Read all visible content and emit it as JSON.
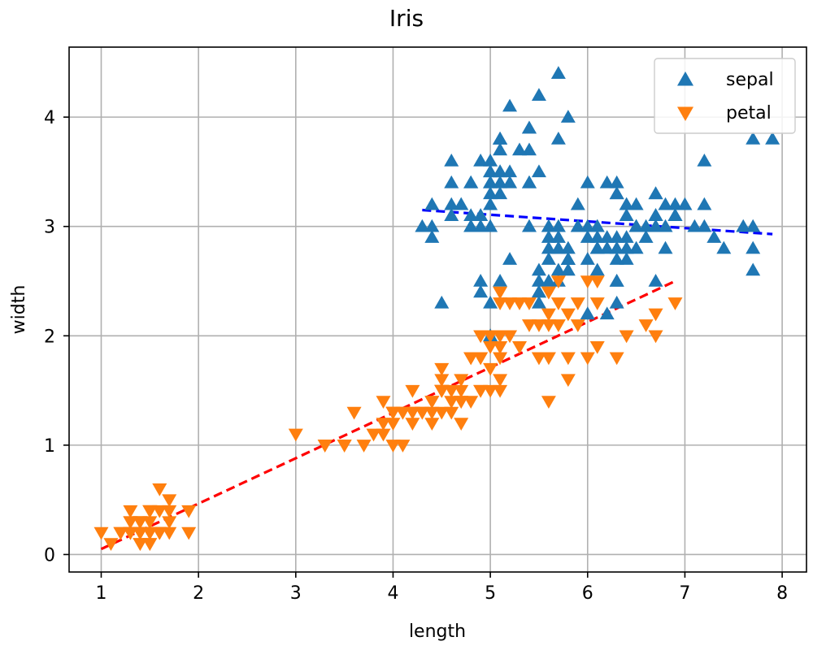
{
  "chart_data": {
    "type": "scatter",
    "title": "Iris",
    "xlabel": "length",
    "ylabel": "width",
    "xlim": [
      0.67,
      8.25
    ],
    "ylim": [
      -0.16,
      4.64
    ],
    "xticks": [
      1,
      2,
      3,
      4,
      5,
      6,
      7,
      8
    ],
    "yticks": [
      0,
      1,
      2,
      3,
      4
    ],
    "grid": true,
    "legend_position": "top-right",
    "series": [
      {
        "name": "sepal",
        "marker": "triangle-up",
        "color": "#1f77b4",
        "points": [
          [
            5.1,
            3.5
          ],
          [
            4.9,
            3.0
          ],
          [
            4.7,
            3.2
          ],
          [
            4.6,
            3.1
          ],
          [
            5.0,
            3.6
          ],
          [
            5.4,
            3.9
          ],
          [
            4.6,
            3.4
          ],
          [
            5.0,
            3.4
          ],
          [
            4.4,
            2.9
          ],
          [
            4.9,
            3.1
          ],
          [
            5.4,
            3.7
          ],
          [
            4.8,
            3.4
          ],
          [
            4.8,
            3.0
          ],
          [
            4.3,
            3.0
          ],
          [
            5.8,
            4.0
          ],
          [
            5.7,
            4.4
          ],
          [
            5.4,
            3.9
          ],
          [
            5.1,
            3.5
          ],
          [
            5.7,
            3.8
          ],
          [
            5.1,
            3.8
          ],
          [
            5.4,
            3.4
          ],
          [
            5.1,
            3.7
          ],
          [
            4.6,
            3.6
          ],
          [
            5.1,
            3.3
          ],
          [
            4.8,
            3.4
          ],
          [
            5.0,
            3.0
          ],
          [
            5.0,
            3.4
          ],
          [
            5.2,
            3.5
          ],
          [
            5.2,
            3.4
          ],
          [
            4.7,
            3.2
          ],
          [
            4.8,
            3.1
          ],
          [
            5.4,
            3.4
          ],
          [
            5.2,
            4.1
          ],
          [
            5.5,
            4.2
          ],
          [
            4.9,
            3.1
          ],
          [
            5.0,
            3.2
          ],
          [
            5.5,
            3.5
          ],
          [
            4.9,
            3.6
          ],
          [
            4.4,
            3.0
          ],
          [
            5.1,
            3.4
          ],
          [
            5.0,
            3.5
          ],
          [
            4.5,
            2.3
          ],
          [
            4.4,
            3.2
          ],
          [
            5.0,
            3.5
          ],
          [
            5.1,
            3.8
          ],
          [
            4.8,
            3.0
          ],
          [
            5.1,
            3.8
          ],
          [
            4.6,
            3.2
          ],
          [
            5.3,
            3.7
          ],
          [
            5.0,
            3.3
          ],
          [
            7.0,
            3.2
          ],
          [
            6.4,
            3.2
          ],
          [
            6.9,
            3.1
          ],
          [
            5.5,
            2.3
          ],
          [
            6.5,
            2.8
          ],
          [
            5.7,
            2.8
          ],
          [
            6.3,
            3.3
          ],
          [
            4.9,
            2.4
          ],
          [
            6.6,
            2.9
          ],
          [
            5.2,
            2.7
          ],
          [
            5.0,
            2.0
          ],
          [
            5.9,
            3.0
          ],
          [
            6.0,
            2.2
          ],
          [
            6.1,
            2.9
          ],
          [
            5.6,
            2.9
          ],
          [
            6.7,
            3.1
          ],
          [
            5.6,
            3.0
          ],
          [
            5.8,
            2.7
          ],
          [
            6.2,
            2.2
          ],
          [
            5.6,
            2.5
          ],
          [
            5.9,
            3.2
          ],
          [
            6.1,
            2.8
          ],
          [
            6.3,
            2.5
          ],
          [
            6.1,
            2.8
          ],
          [
            6.4,
            2.9
          ],
          [
            6.6,
            3.0
          ],
          [
            6.8,
            2.8
          ],
          [
            6.7,
            3.0
          ],
          [
            6.0,
            2.9
          ],
          [
            5.7,
            2.6
          ],
          [
            5.5,
            2.4
          ],
          [
            5.5,
            2.4
          ],
          [
            5.8,
            2.7
          ],
          [
            6.0,
            2.7
          ],
          [
            5.4,
            3.0
          ],
          [
            6.0,
            3.4
          ],
          [
            6.7,
            3.1
          ],
          [
            6.3,
            2.3
          ],
          [
            5.6,
            3.0
          ],
          [
            5.5,
            2.5
          ],
          [
            5.5,
            2.6
          ],
          [
            6.1,
            3.0
          ],
          [
            5.8,
            2.6
          ],
          [
            5.0,
            2.3
          ],
          [
            5.6,
            2.7
          ],
          [
            5.7,
            3.0
          ],
          [
            5.7,
            2.9
          ],
          [
            6.2,
            2.9
          ],
          [
            5.1,
            2.5
          ],
          [
            5.7,
            2.8
          ],
          [
            6.3,
            3.3
          ],
          [
            5.8,
            2.7
          ],
          [
            7.1,
            3.0
          ],
          [
            6.3,
            2.9
          ],
          [
            6.5,
            3.0
          ],
          [
            7.6,
            3.0
          ],
          [
            4.9,
            2.5
          ],
          [
            7.3,
            2.9
          ],
          [
            6.7,
            2.5
          ],
          [
            7.2,
            3.6
          ],
          [
            6.5,
            3.2
          ],
          [
            6.4,
            2.7
          ],
          [
            6.8,
            3.0
          ],
          [
            5.7,
            2.5
          ],
          [
            5.8,
            2.8
          ],
          [
            6.4,
            3.2
          ],
          [
            6.5,
            3.0
          ],
          [
            7.7,
            3.8
          ],
          [
            7.7,
            2.6
          ],
          [
            6.0,
            2.2
          ],
          [
            6.9,
            3.2
          ],
          [
            5.6,
            2.8
          ],
          [
            7.7,
            2.8
          ],
          [
            6.3,
            2.7
          ],
          [
            6.7,
            3.3
          ],
          [
            7.2,
            3.2
          ],
          [
            6.2,
            2.8
          ],
          [
            6.1,
            3.0
          ],
          [
            6.4,
            2.8
          ],
          [
            7.2,
            3.0
          ],
          [
            7.4,
            2.8
          ],
          [
            7.9,
            3.8
          ],
          [
            6.4,
            2.8
          ],
          [
            6.3,
            2.8
          ],
          [
            6.1,
            2.6
          ],
          [
            7.7,
            3.0
          ],
          [
            6.3,
            3.4
          ],
          [
            6.4,
            3.1
          ],
          [
            6.0,
            3.0
          ],
          [
            6.9,
            3.1
          ],
          [
            6.7,
            3.1
          ],
          [
            6.9,
            3.1
          ],
          [
            5.8,
            2.7
          ],
          [
            6.8,
            3.2
          ],
          [
            6.7,
            3.3
          ],
          [
            6.7,
            3.0
          ],
          [
            6.3,
            2.5
          ],
          [
            6.5,
            3.0
          ],
          [
            6.2,
            3.4
          ],
          [
            5.9,
            3.0
          ]
        ]
      },
      {
        "name": "petal",
        "marker": "triangle-down",
        "color": "#ff7f0e",
        "points": [
          [
            1.4,
            0.2
          ],
          [
            1.4,
            0.2
          ],
          [
            1.3,
            0.2
          ],
          [
            1.5,
            0.2
          ],
          [
            1.4,
            0.2
          ],
          [
            1.7,
            0.4
          ],
          [
            1.4,
            0.3
          ],
          [
            1.5,
            0.2
          ],
          [
            1.4,
            0.2
          ],
          [
            1.5,
            0.1
          ],
          [
            1.5,
            0.2
          ],
          [
            1.6,
            0.2
          ],
          [
            1.4,
            0.1
          ],
          [
            1.1,
            0.1
          ],
          [
            1.2,
            0.2
          ],
          [
            1.5,
            0.4
          ],
          [
            1.3,
            0.4
          ],
          [
            1.4,
            0.3
          ],
          [
            1.7,
            0.3
          ],
          [
            1.5,
            0.3
          ],
          [
            1.7,
            0.2
          ],
          [
            1.5,
            0.4
          ],
          [
            1.0,
            0.2
          ],
          [
            1.7,
            0.5
          ],
          [
            1.9,
            0.2
          ],
          [
            1.6,
            0.2
          ],
          [
            1.6,
            0.4
          ],
          [
            1.5,
            0.2
          ],
          [
            1.4,
            0.2
          ],
          [
            1.6,
            0.2
          ],
          [
            1.6,
            0.2
          ],
          [
            1.5,
            0.4
          ],
          [
            1.5,
            0.1
          ],
          [
            1.4,
            0.2
          ],
          [
            1.5,
            0.2
          ],
          [
            1.2,
            0.2
          ],
          [
            1.3,
            0.2
          ],
          [
            1.4,
            0.1
          ],
          [
            1.3,
            0.2
          ],
          [
            1.5,
            0.2
          ],
          [
            1.3,
            0.3
          ],
          [
            1.3,
            0.3
          ],
          [
            1.3,
            0.2
          ],
          [
            1.6,
            0.6
          ],
          [
            1.9,
            0.4
          ],
          [
            1.4,
            0.3
          ],
          [
            1.6,
            0.2
          ],
          [
            1.4,
            0.2
          ],
          [
            1.5,
            0.2
          ],
          [
            1.4,
            0.2
          ],
          [
            4.7,
            1.4
          ],
          [
            4.5,
            1.5
          ],
          [
            4.9,
            1.5
          ],
          [
            4.0,
            1.3
          ],
          [
            4.6,
            1.5
          ],
          [
            4.5,
            1.3
          ],
          [
            4.7,
            1.6
          ],
          [
            3.3,
            1.0
          ],
          [
            4.6,
            1.3
          ],
          [
            3.9,
            1.4
          ],
          [
            3.5,
            1.0
          ],
          [
            4.2,
            1.5
          ],
          [
            4.0,
            1.0
          ],
          [
            4.7,
            1.4
          ],
          [
            3.6,
            1.3
          ],
          [
            4.4,
            1.4
          ],
          [
            4.5,
            1.5
          ],
          [
            4.1,
            1.0
          ],
          [
            4.5,
            1.5
          ],
          [
            3.9,
            1.1
          ],
          [
            4.8,
            1.8
          ],
          [
            4.0,
            1.3
          ],
          [
            4.9,
            1.5
          ],
          [
            4.7,
            1.2
          ],
          [
            4.3,
            1.3
          ],
          [
            4.4,
            1.4
          ],
          [
            4.8,
            1.4
          ],
          [
            5.0,
            1.7
          ],
          [
            4.5,
            1.5
          ],
          [
            3.5,
            1.0
          ],
          [
            3.8,
            1.1
          ],
          [
            3.7,
            1.0
          ],
          [
            3.9,
            1.2
          ],
          [
            5.1,
            1.6
          ],
          [
            4.5,
            1.5
          ],
          [
            4.5,
            1.6
          ],
          [
            4.7,
            1.5
          ],
          [
            4.4,
            1.3
          ],
          [
            4.1,
            1.3
          ],
          [
            4.0,
            1.3
          ],
          [
            4.4,
            1.2
          ],
          [
            4.6,
            1.4
          ],
          [
            4.0,
            1.2
          ],
          [
            3.3,
            1.0
          ],
          [
            4.2,
            1.3
          ],
          [
            4.2,
            1.2
          ],
          [
            4.2,
            1.3
          ],
          [
            4.3,
            1.3
          ],
          [
            3.0,
            1.1
          ],
          [
            4.1,
            1.3
          ],
          [
            6.0,
            2.5
          ],
          [
            5.1,
            1.9
          ],
          [
            5.9,
            2.1
          ],
          [
            5.6,
            1.8
          ],
          [
            5.8,
            2.2
          ],
          [
            6.6,
            2.1
          ],
          [
            4.5,
            1.7
          ],
          [
            6.3,
            1.8
          ],
          [
            5.8,
            1.8
          ],
          [
            6.1,
            2.5
          ],
          [
            5.1,
            2.0
          ],
          [
            5.3,
            1.9
          ],
          [
            5.5,
            2.1
          ],
          [
            5.0,
            2.0
          ],
          [
            5.1,
            2.4
          ],
          [
            5.3,
            2.3
          ],
          [
            5.5,
            1.8
          ],
          [
            6.7,
            2.2
          ],
          [
            6.9,
            2.3
          ],
          [
            5.0,
            1.5
          ],
          [
            5.7,
            2.3
          ],
          [
            4.9,
            2.0
          ],
          [
            6.7,
            2.0
          ],
          [
            4.9,
            1.8
          ],
          [
            5.7,
            2.1
          ],
          [
            6.0,
            1.8
          ],
          [
            4.8,
            1.8
          ],
          [
            4.9,
            1.8
          ],
          [
            5.6,
            2.1
          ],
          [
            5.8,
            1.6
          ],
          [
            6.1,
            1.9
          ],
          [
            6.4,
            2.0
          ],
          [
            5.6,
            2.2
          ],
          [
            5.1,
            1.5
          ],
          [
            5.6,
            1.4
          ],
          [
            6.1,
            2.3
          ],
          [
            5.6,
            2.4
          ],
          [
            5.5,
            1.8
          ],
          [
            4.8,
            1.8
          ],
          [
            5.4,
            2.1
          ],
          [
            5.6,
            2.4
          ],
          [
            5.1,
            2.3
          ],
          [
            5.1,
            1.9
          ],
          [
            5.9,
            2.3
          ],
          [
            5.7,
            2.5
          ],
          [
            5.2,
            2.3
          ],
          [
            5.0,
            1.9
          ],
          [
            5.2,
            2.0
          ],
          [
            5.4,
            2.3
          ],
          [
            5.1,
            1.8
          ]
        ]
      }
    ],
    "fit_lines": [
      {
        "series": "sepal",
        "color": "#0000ff",
        "style": "dashed",
        "x": [
          4.3,
          7.9
        ],
        "y": [
          3.15,
          2.93
        ]
      },
      {
        "series": "petal",
        "color": "#ff0000",
        "style": "dashed",
        "x": [
          1.0,
          6.9
        ],
        "y": [
          0.05,
          2.5
        ]
      }
    ]
  }
}
